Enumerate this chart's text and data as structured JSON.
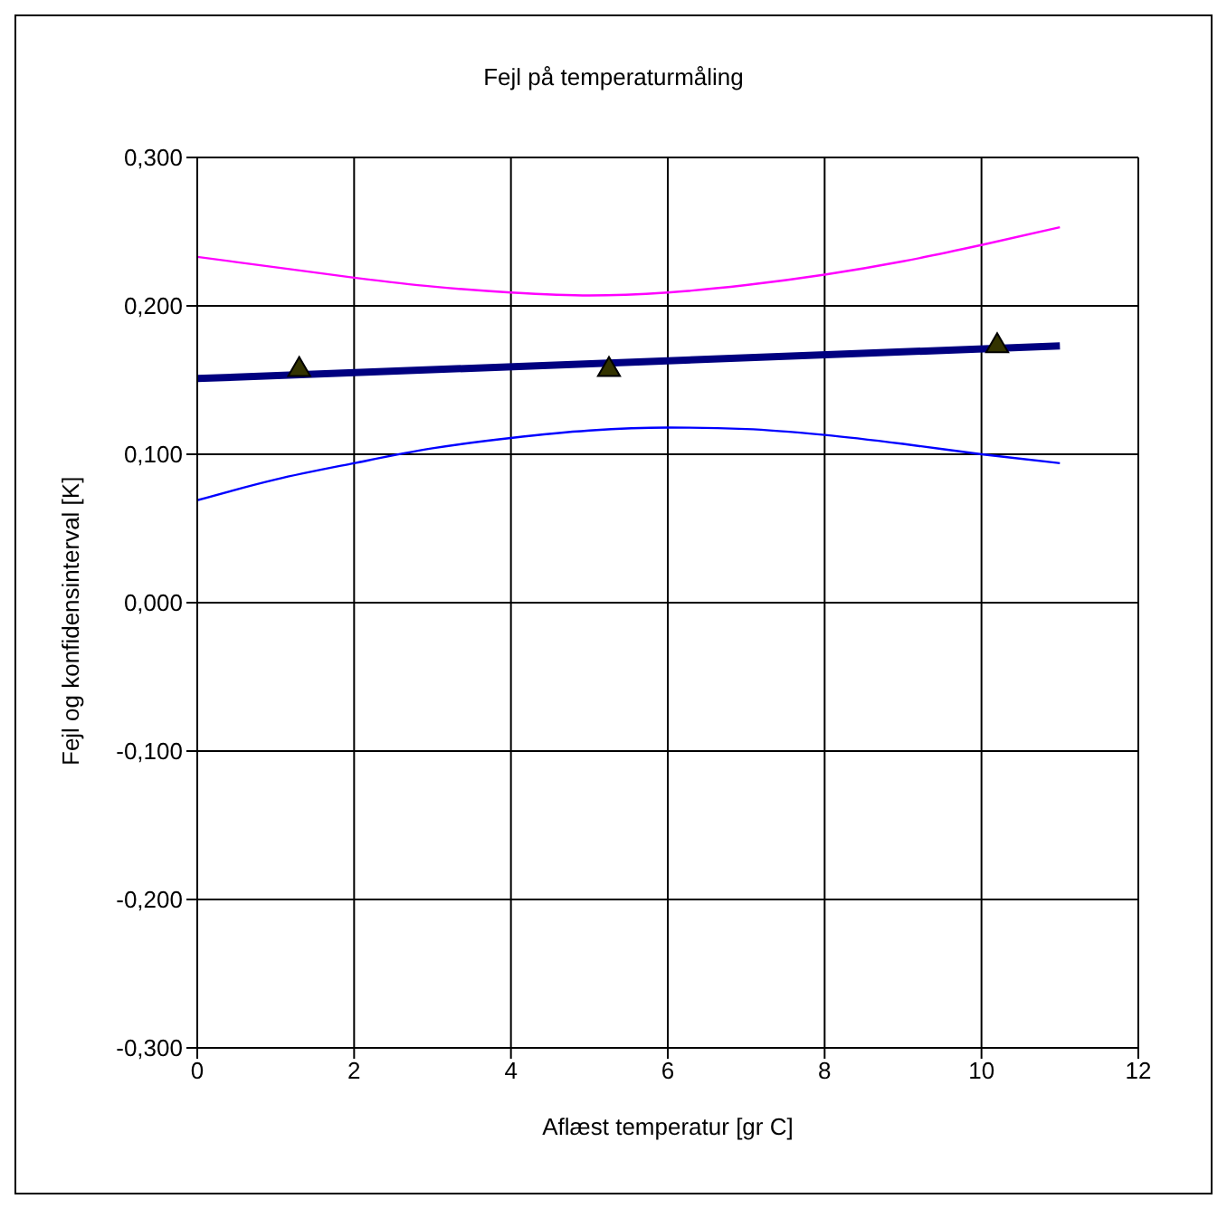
{
  "chart_data": {
    "type": "line",
    "title": "Fejl på temperaturmåling",
    "xlabel": "Aflæst temperatur [gr C]",
    "ylabel": "Fejl og konfidensinterval [K]",
    "xlim": [
      0,
      12
    ],
    "xticks": [
      0,
      2,
      4,
      6,
      8,
      10,
      12
    ],
    "ylim": [
      -0.3,
      0.3
    ],
    "yticks": [
      {
        "value": -0.3,
        "label": "-0,300"
      },
      {
        "value": -0.2,
        "label": "-0,200"
      },
      {
        "value": -0.1,
        "label": "-0,100"
      },
      {
        "value": 0,
        "label": "0,000"
      },
      {
        "value": 0.1,
        "label": "0,100"
      },
      {
        "value": 0.2,
        "label": "0,200"
      },
      {
        "value": 0.3,
        "label": "0,300"
      }
    ],
    "grid": true,
    "series": [
      {
        "color": "#ff00ff",
        "marker": "none",
        "x": [
          0,
          1,
          2,
          3,
          4,
          5,
          6,
          7,
          8,
          9,
          10,
          11
        ],
        "values": [
          0.233,
          0.226,
          0.219,
          0.213,
          0.209,
          0.207,
          0.209,
          0.214,
          0.221,
          0.23,
          0.241,
          0.253
        ]
      },
      {
        "color": "#0000ff",
        "marker": "none",
        "x": [
          0,
          1,
          2,
          3,
          4,
          5,
          6,
          7,
          8,
          9,
          10,
          11
        ],
        "values": [
          0.069,
          0.083,
          0.094,
          0.104,
          0.111,
          0.116,
          0.118,
          0.117,
          0.113,
          0.107,
          0.1,
          0.094
        ]
      },
      {
        "color": "#000080",
        "marker": "none",
        "x": [
          0,
          11
        ],
        "values": [
          0.151,
          0.173
        ]
      },
      {
        "type": "scatter",
        "color": "#333300",
        "marker": "triangle",
        "x": [
          1.3,
          5.25,
          10.2
        ],
        "values": [
          0.157,
          0.157,
          0.173
        ]
      }
    ]
  }
}
